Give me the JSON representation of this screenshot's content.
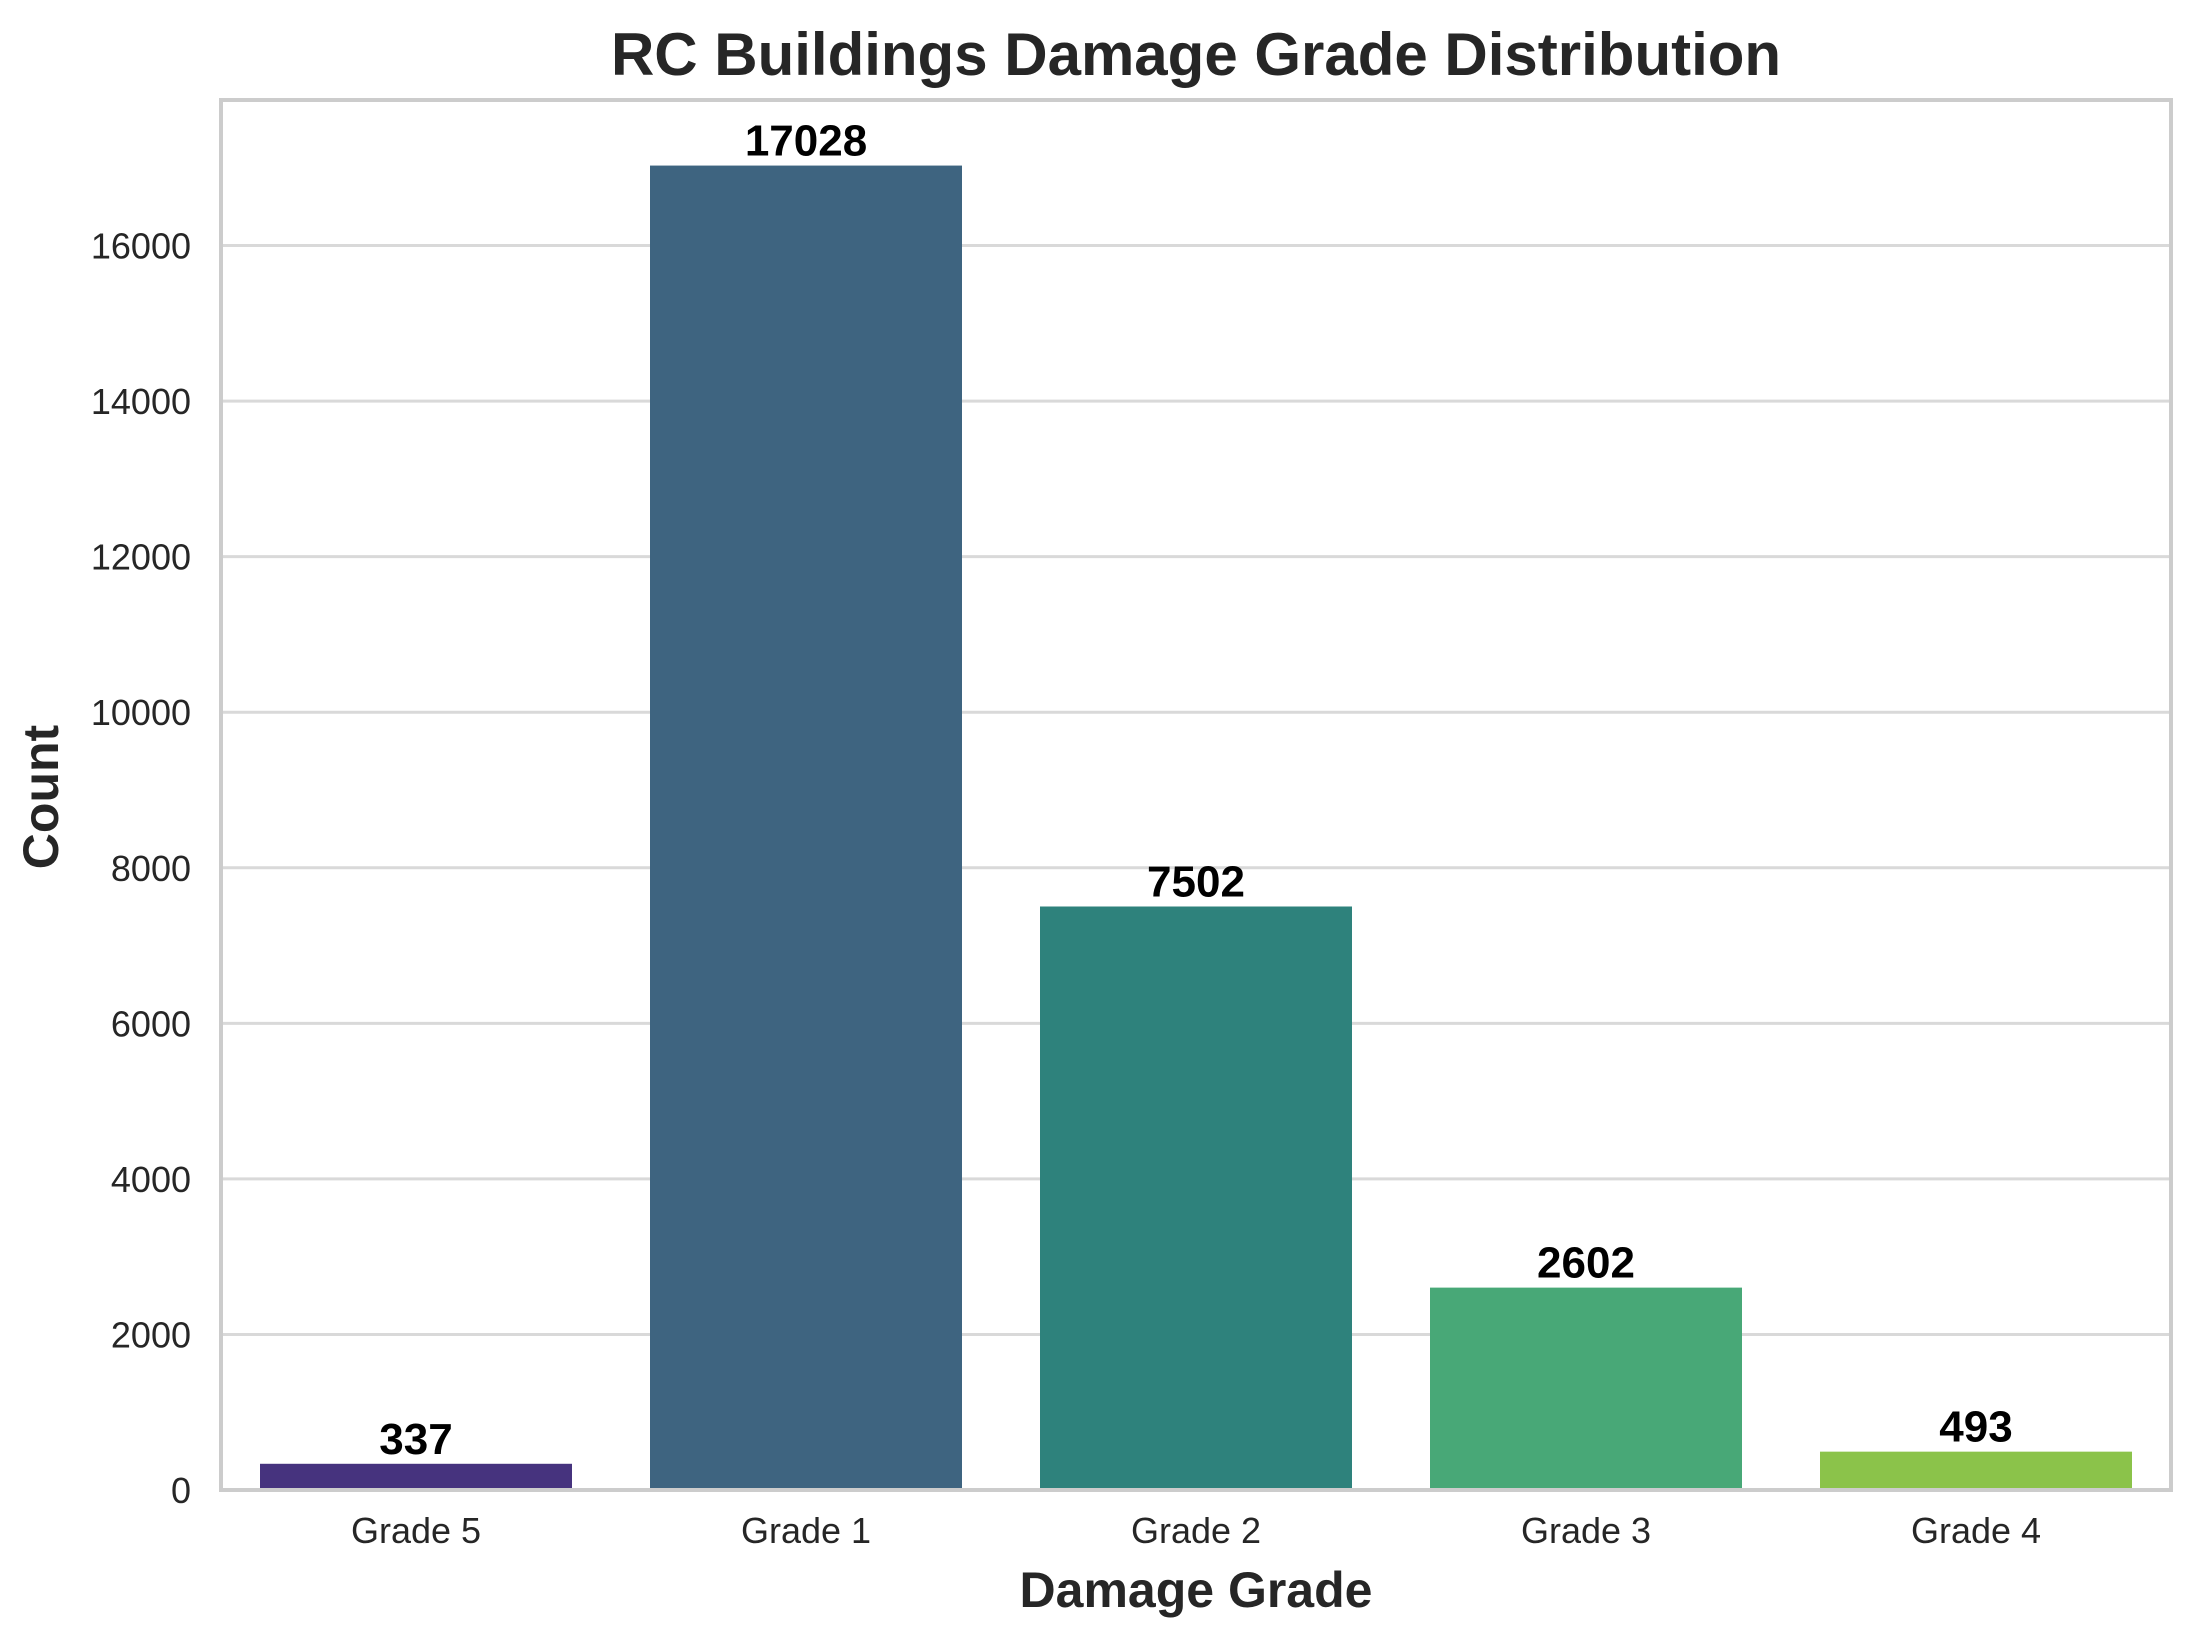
{
  "chart_data": {
    "type": "bar",
    "title": "RC Buildings Damage Grade Distribution",
    "xlabel": "Damage Grade",
    "ylabel": "Count",
    "categories": [
      "Grade 5",
      "Grade 1",
      "Grade 2",
      "Grade 3",
      "Grade 4"
    ],
    "values": [
      337,
      17028,
      7502,
      2602,
      493
    ],
    "value_labels": [
      "337",
      "17028",
      "7502",
      "2602",
      "493"
    ],
    "colors": [
      "#46337e",
      "#3e6480",
      "#2e827c",
      "#48a877",
      "#8bc34a"
    ],
    "ylim": [
      0,
      17871
    ],
    "yticks": [
      0,
      2000,
      4000,
      6000,
      8000,
      10000,
      12000,
      14000,
      16000
    ],
    "ytick_labels": [
      "0",
      "2000",
      "4000",
      "6000",
      "8000",
      "10000",
      "12000",
      "14000",
      "16000"
    ],
    "grid": true,
    "legend": "none"
  }
}
